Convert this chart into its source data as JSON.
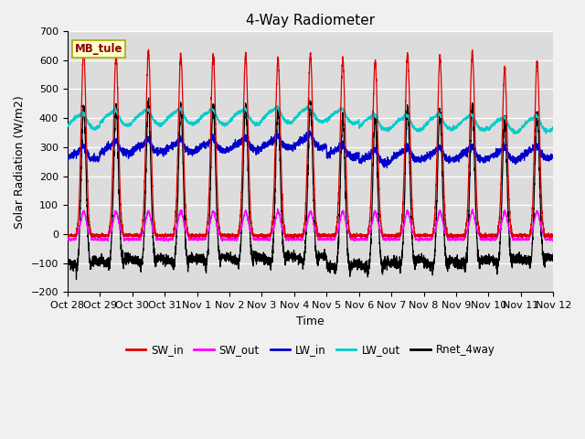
{
  "title": "4-Way Radiometer",
  "xlabel": "Time",
  "ylabel": "Solar Radiation (W/m2)",
  "station_label": "MB_tule",
  "ylim": [
    -200,
    700
  ],
  "yticks": [
    -200,
    -100,
    0,
    100,
    200,
    300,
    400,
    500,
    600,
    700
  ],
  "xtick_labels": [
    "Oct 28",
    "Oct 29",
    "Oct 30",
    "Oct 31",
    "Nov 1",
    "Nov 2",
    "Nov 3",
    "Nov 4",
    "Nov 5",
    "Nov 6",
    "Nov 7",
    "Nov 8",
    "Nov 9",
    "Nov 10",
    "Nov 11",
    "Nov 12"
  ],
  "colors": {
    "SW_in": "#dd0000",
    "SW_out": "#ff00ff",
    "LW_in": "#0000cc",
    "LW_out": "#00cccc",
    "Rnet_4way": "#000000"
  },
  "n_days": 15,
  "pts_per_day": 288,
  "title_fontsize": 11,
  "label_fontsize": 9,
  "tick_fontsize": 8,
  "bg_color": "#dcdcdc",
  "fig_bg": "#f0f0f0"
}
